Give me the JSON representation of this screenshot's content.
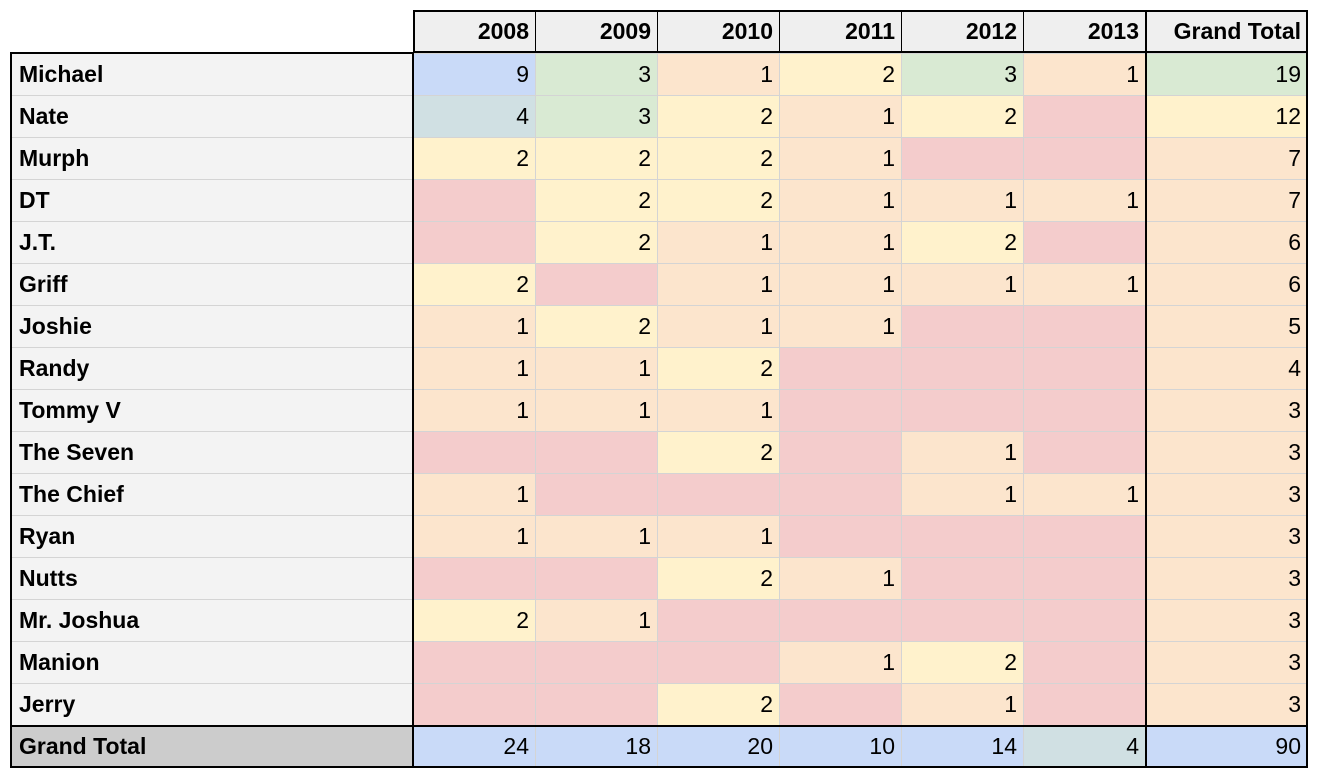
{
  "table": {
    "columns": [
      "2008",
      "2009",
      "2010",
      "2011",
      "2012",
      "2013",
      "Grand Total"
    ],
    "rows": [
      {
        "label": "Michael",
        "cells": [
          9,
          3,
          1,
          2,
          3,
          1,
          19
        ],
        "colors": [
          "#c9daf8",
          "#d9ead3",
          "#fce5cd",
          "#fff2cc",
          "#d9ead3",
          "#fce5cd",
          "#d9ead3"
        ]
      },
      {
        "label": "Nate",
        "cells": [
          4,
          3,
          2,
          1,
          2,
          null,
          12
        ],
        "colors": [
          "#d0e0e3",
          "#d9ead3",
          "#fff2cc",
          "#fce5cd",
          "#fff2cc",
          "#f4cccc",
          "#fff2cc"
        ]
      },
      {
        "label": "Murph",
        "cells": [
          2,
          2,
          2,
          1,
          null,
          null,
          7
        ],
        "colors": [
          "#fff2cc",
          "#fff2cc",
          "#fff2cc",
          "#fce5cd",
          "#f4cccc",
          "#f4cccc",
          "#fce5cd"
        ]
      },
      {
        "label": "DT",
        "cells": [
          null,
          2,
          2,
          1,
          1,
          1,
          7
        ],
        "colors": [
          "#f4cccc",
          "#fff2cc",
          "#fff2cc",
          "#fce5cd",
          "#fce5cd",
          "#fce5cd",
          "#fce5cd"
        ]
      },
      {
        "label": "J.T.",
        "cells": [
          null,
          2,
          1,
          1,
          2,
          null,
          6
        ],
        "colors": [
          "#f4cccc",
          "#fff2cc",
          "#fce5cd",
          "#fce5cd",
          "#fff2cc",
          "#f4cccc",
          "#fce5cd"
        ]
      },
      {
        "label": "Griff",
        "cells": [
          2,
          null,
          1,
          1,
          1,
          1,
          6
        ],
        "colors": [
          "#fff2cc",
          "#f4cccc",
          "#fce5cd",
          "#fce5cd",
          "#fce5cd",
          "#fce5cd",
          "#fce5cd"
        ]
      },
      {
        "label": "Joshie",
        "cells": [
          1,
          2,
          1,
          1,
          null,
          null,
          5
        ],
        "colors": [
          "#fce5cd",
          "#fff2cc",
          "#fce5cd",
          "#fce5cd",
          "#f4cccc",
          "#f4cccc",
          "#fce5cd"
        ]
      },
      {
        "label": "Randy",
        "cells": [
          1,
          1,
          2,
          null,
          null,
          null,
          4
        ],
        "colors": [
          "#fce5cd",
          "#fce5cd",
          "#fff2cc",
          "#f4cccc",
          "#f4cccc",
          "#f4cccc",
          "#fce5cd"
        ]
      },
      {
        "label": "Tommy V",
        "cells": [
          1,
          1,
          1,
          null,
          null,
          null,
          3
        ],
        "colors": [
          "#fce5cd",
          "#fce5cd",
          "#fce5cd",
          "#f4cccc",
          "#f4cccc",
          "#f4cccc",
          "#fce5cd"
        ]
      },
      {
        "label": "The Seven",
        "cells": [
          null,
          null,
          2,
          null,
          1,
          null,
          3
        ],
        "colors": [
          "#f4cccc",
          "#f4cccc",
          "#fff2cc",
          "#f4cccc",
          "#fce5cd",
          "#f4cccc",
          "#fce5cd"
        ]
      },
      {
        "label": "The Chief",
        "cells": [
          1,
          null,
          null,
          null,
          1,
          1,
          3
        ],
        "colors": [
          "#fce5cd",
          "#f4cccc",
          "#f4cccc",
          "#f4cccc",
          "#fce5cd",
          "#fce5cd",
          "#fce5cd"
        ]
      },
      {
        "label": "Ryan",
        "cells": [
          1,
          1,
          1,
          null,
          null,
          null,
          3
        ],
        "colors": [
          "#fce5cd",
          "#fce5cd",
          "#fce5cd",
          "#f4cccc",
          "#f4cccc",
          "#f4cccc",
          "#fce5cd"
        ]
      },
      {
        "label": "Nutts",
        "cells": [
          null,
          null,
          2,
          1,
          null,
          null,
          3
        ],
        "colors": [
          "#f4cccc",
          "#f4cccc",
          "#fff2cc",
          "#fce5cd",
          "#f4cccc",
          "#f4cccc",
          "#fce5cd"
        ]
      },
      {
        "label": "Mr. Joshua",
        "cells": [
          2,
          1,
          null,
          null,
          null,
          null,
          3
        ],
        "colors": [
          "#fff2cc",
          "#fce5cd",
          "#f4cccc",
          "#f4cccc",
          "#f4cccc",
          "#f4cccc",
          "#fce5cd"
        ]
      },
      {
        "label": "Manion",
        "cells": [
          null,
          null,
          null,
          1,
          2,
          null,
          3
        ],
        "colors": [
          "#f4cccc",
          "#f4cccc",
          "#f4cccc",
          "#fce5cd",
          "#fff2cc",
          "#f4cccc",
          "#fce5cd"
        ]
      },
      {
        "label": "Jerry",
        "cells": [
          null,
          null,
          2,
          null,
          1,
          null,
          3
        ],
        "colors": [
          "#f4cccc",
          "#f4cccc",
          "#fff2cc",
          "#f4cccc",
          "#fce5cd",
          "#f4cccc",
          "#fce5cd"
        ]
      }
    ],
    "total": {
      "label": "Grand Total",
      "cells": [
        24,
        18,
        20,
        10,
        14,
        4,
        90
      ],
      "colors": [
        "#c9daf8",
        "#c9daf8",
        "#c9daf8",
        "#c9daf8",
        "#c9daf8",
        "#d0e0e3",
        "#c9daf8"
      ]
    }
  }
}
